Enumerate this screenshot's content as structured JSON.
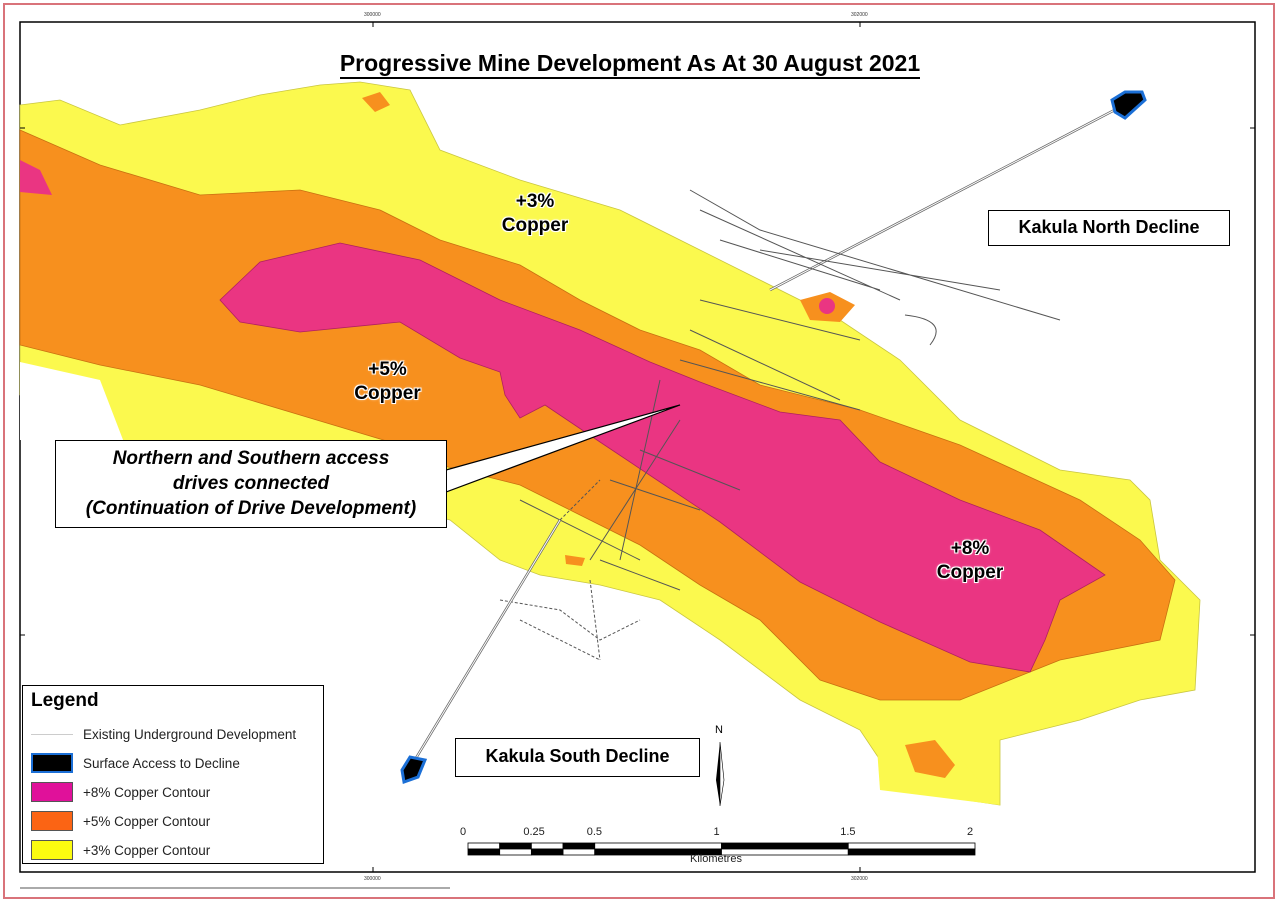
{
  "title": "Progressive Mine Development As At 30 August 2021",
  "colors": {
    "plus8": "#ea3582",
    "plus5": "#f7901e",
    "plus3": "#fbf94e",
    "decline_fill": "#000000",
    "decline_outline": "#1b6fd6",
    "frame": "#d9737a"
  },
  "zone_labels": {
    "plus3_pct": "+3%",
    "plus3_word": "Copper",
    "plus5_pct": "+5%",
    "plus5_word": "Copper",
    "plus8_pct": "+8%",
    "plus8_word": "Copper"
  },
  "callout": {
    "line1": "Northern and Southern access",
    "line2": "drives connected",
    "line3": "(Continuation of Drive Development)"
  },
  "north_decline_label": "Kakula North Decline",
  "south_decline_label": "Kakula South Decline",
  "legend": {
    "title": "Legend",
    "items": [
      {
        "label": "Existing Underground Development",
        "icon": "thin-grey-line"
      },
      {
        "label": "Surface Access to Decline",
        "icon": "black-box-blue-outline"
      },
      {
        "label": "+8% Copper Contour",
        "icon": "magenta-box"
      },
      {
        "label": "+5% Copper Contour",
        "icon": "orange-box"
      },
      {
        "label": "+3% Copper Contour",
        "icon": "yellow-box"
      }
    ]
  },
  "north_arrow": "N",
  "scale_bar": {
    "ticks": [
      "0",
      "0.25",
      "0.5",
      "1",
      "1.5",
      "2"
    ],
    "unit": "Kilometres"
  },
  "grid_ticks": {
    "x": [
      "300000",
      "302000"
    ]
  }
}
